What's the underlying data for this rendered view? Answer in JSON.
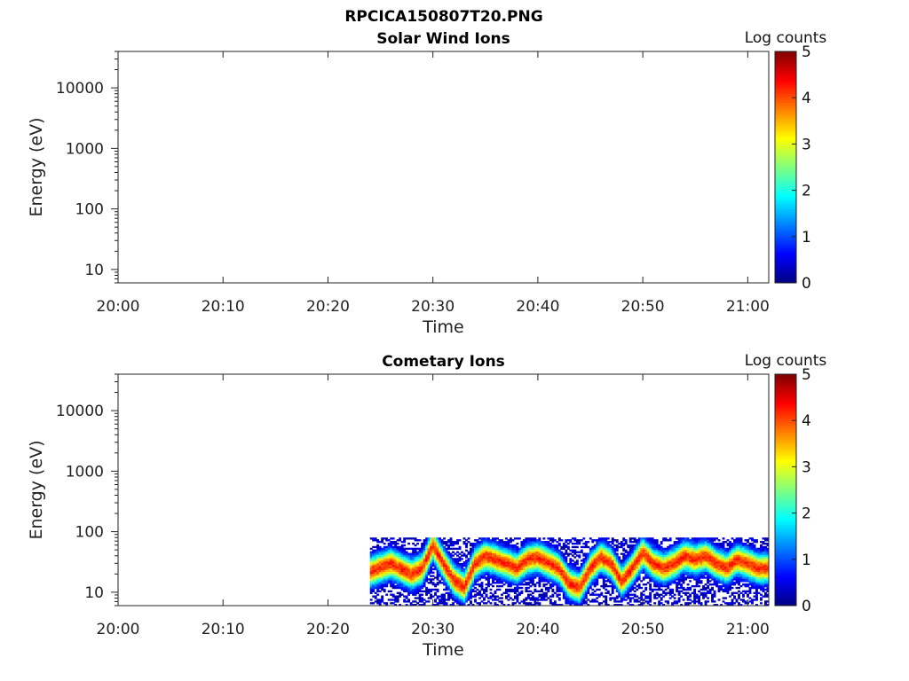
{
  "figure_title": "RPCICA150807T20.PNG",
  "chart_data": [
    {
      "type": "heatmap",
      "title": "Solar Wind Ions",
      "xlabel": "Time",
      "ylabel": "Energy (eV)",
      "x_ticks": [
        "20:00",
        "20:10",
        "20:20",
        "20:30",
        "20:40",
        "20:50",
        "21:00"
      ],
      "x_range": [
        "20:00",
        "21:02"
      ],
      "y_scale": "log",
      "y_ticks": [
        "10",
        "100",
        "1000",
        "10000"
      ],
      "y_range": [
        6,
        40000
      ],
      "colorbar": {
        "label": "Log counts",
        "ticks": [
          "0",
          "1",
          "2",
          "3",
          "4",
          "5"
        ],
        "range": [
          0,
          5
        ],
        "colormap": "jet"
      },
      "data": []
    },
    {
      "type": "heatmap",
      "title": "Cometary Ions",
      "xlabel": "Time",
      "ylabel": "Energy (eV)",
      "x_ticks": [
        "20:00",
        "20:10",
        "20:20",
        "20:30",
        "20:40",
        "20:50",
        "21:00"
      ],
      "x_range": [
        "20:00",
        "21:02"
      ],
      "y_scale": "log",
      "y_ticks": [
        "10",
        "100",
        "1000",
        "10000"
      ],
      "y_range": [
        6,
        40000
      ],
      "colorbar": {
        "label": "Log counts",
        "ticks": [
          "0",
          "1",
          "2",
          "3",
          "4",
          "5"
        ],
        "range": [
          0,
          5
        ],
        "colormap": "jet"
      },
      "data_start": "20:24",
      "data_end": "21:02",
      "energy_max_eV": 80,
      "peak_energy_eV": [
        [
          "20:24",
          22
        ],
        [
          "20:26",
          30
        ],
        [
          "20:28",
          20
        ],
        [
          "20:29",
          25
        ],
        [
          "20:30",
          60
        ],
        [
          "20:31",
          30
        ],
        [
          "20:32",
          16
        ],
        [
          "20:33",
          12
        ],
        [
          "20:34",
          30
        ],
        [
          "20:35",
          40
        ],
        [
          "20:37",
          30
        ],
        [
          "20:38",
          25
        ],
        [
          "20:39",
          35
        ],
        [
          "20:40",
          38
        ],
        [
          "20:42",
          25
        ],
        [
          "20:43",
          14
        ],
        [
          "20:44",
          12
        ],
        [
          "20:45",
          25
        ],
        [
          "20:46",
          38
        ],
        [
          "20:47",
          30
        ],
        [
          "20:48",
          15
        ],
        [
          "20:49",
          25
        ],
        [
          "20:50",
          45
        ],
        [
          "20:51",
          30
        ],
        [
          "20:52",
          25
        ],
        [
          "20:53",
          30
        ],
        [
          "20:54",
          40
        ],
        [
          "20:55",
          35
        ],
        [
          "20:56",
          40
        ],
        [
          "20:57",
          30
        ],
        [
          "20:58",
          25
        ],
        [
          "20:59",
          35
        ],
        [
          "21:00",
          30
        ],
        [
          "21:01",
          25
        ],
        [
          "21:02",
          25
        ]
      ],
      "peak_log_counts": 4.2
    }
  ]
}
